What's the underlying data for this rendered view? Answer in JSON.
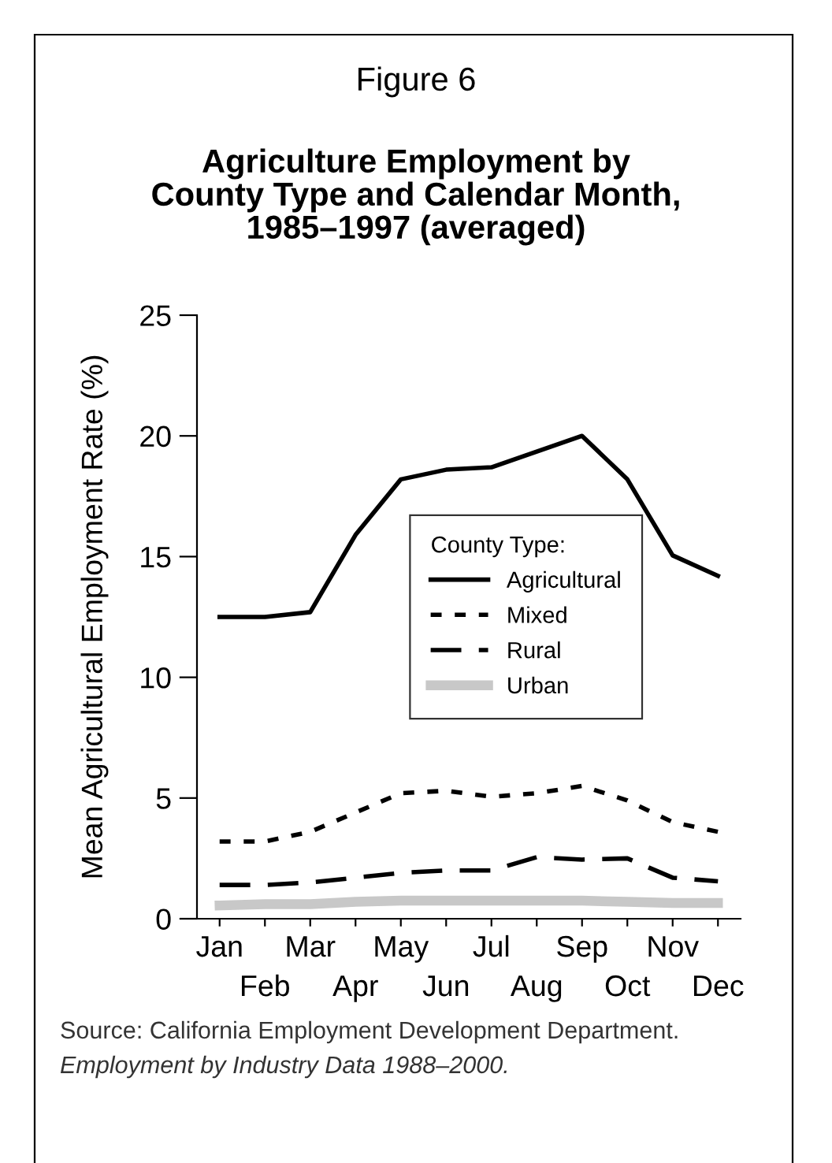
{
  "chart_data": {
    "type": "line",
    "subtitle": "Figure 6",
    "title": "Agriculture Employment by\nCounty Type and Calendar Month,\n1985–1997 (averaged)",
    "ylabel": "Mean Agricultural Employment Rate (%)",
    "categories": [
      "Jan",
      "Feb",
      "Mar",
      "Apr",
      "May",
      "Jun",
      "Jul",
      "Aug",
      "Sep",
      "Oct",
      "Nov",
      "Dec"
    ],
    "series": [
      {
        "name": "Agricultural",
        "color": "#000000",
        "line_style": "solid",
        "values": [
          12.5,
          12.5,
          12.7,
          15.9,
          18.2,
          18.6,
          18.7,
          19.35,
          20.0,
          18.2,
          15.05,
          14.2
        ]
      },
      {
        "name": "Mixed",
        "color": "#000000",
        "line_style": "dotted",
        "values": [
          3.2,
          3.2,
          3.6,
          4.4,
          5.2,
          5.3,
          5.05,
          5.2,
          5.5,
          4.9,
          4.0,
          3.6
        ]
      },
      {
        "name": "Rural",
        "color": "#000000",
        "line_style": "dashed",
        "values": [
          1.4,
          1.4,
          1.5,
          1.7,
          1.9,
          2.0,
          2.0,
          2.55,
          2.45,
          2.5,
          1.7,
          1.55
        ]
      },
      {
        "name": "Urban",
        "color": "#c8c8c8",
        "line_style": "solid",
        "values": [
          0.55,
          0.6,
          0.6,
          0.7,
          0.75,
          0.75,
          0.75,
          0.75,
          0.75,
          0.7,
          0.65,
          0.65
        ]
      }
    ],
    "ylim": [
      0,
      25
    ],
    "yticks": [
      0,
      5,
      10,
      15,
      20,
      25
    ],
    "grid": false,
    "legend": "center right",
    "legend_title": "County Type:",
    "annotations": [
      "Source: California Employment Development Department.",
      "Employment by Industry Data 1988–2000."
    ]
  }
}
